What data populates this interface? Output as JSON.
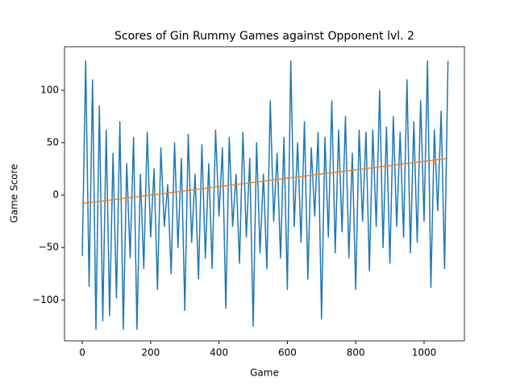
{
  "chart_data": {
    "type": "line",
    "title": "Scores of Gin Rummy Games against Opponent lvl. 2",
    "x_label": "Game",
    "y_label": "Game Score",
    "xlim": [
      -52,
      1118
    ],
    "ylim": [
      -139,
      141.5
    ],
    "xticks": [
      0,
      200,
      400,
      600,
      800,
      1000
    ],
    "yticks": [
      {
        "value": -100,
        "label": "−100"
      },
      {
        "value": -50,
        "label": "−50"
      },
      0,
      50,
      100
    ],
    "series": [
      {
        "color": "#1f77b4",
        "x": [
          0,
          10,
          20,
          30,
          40,
          50,
          60,
          70,
          80,
          90,
          100,
          110,
          120,
          130,
          140,
          150,
          160,
          170,
          180,
          190,
          200,
          210,
          220,
          230,
          240,
          250,
          260,
          270,
          280,
          290,
          300,
          310,
          320,
          330,
          340,
          350,
          360,
          370,
          380,
          390,
          400,
          410,
          420,
          430,
          440,
          450,
          460,
          470,
          480,
          490,
          500,
          510,
          520,
          530,
          540,
          550,
          560,
          570,
          580,
          590,
          600,
          610,
          620,
          630,
          640,
          650,
          660,
          670,
          680,
          690,
          700,
          710,
          720,
          730,
          740,
          750,
          760,
          770,
          780,
          790,
          800,
          810,
          820,
          830,
          840,
          850,
          860,
          870,
          880,
          890,
          900,
          910,
          920,
          930,
          940,
          950,
          960,
          970,
          980,
          990,
          1000,
          1010,
          1020,
          1030,
          1040,
          1050,
          1060,
          1070
        ],
        "values": [
          -58,
          128,
          -87,
          110,
          -128,
          85,
          -120,
          62,
          -115,
          40,
          -98,
          70,
          -128,
          30,
          -60,
          55,
          -128,
          20,
          -70,
          60,
          -40,
          25,
          -90,
          45,
          -30,
          10,
          -75,
          50,
          -50,
          35,
          -110,
          58,
          -45,
          20,
          -80,
          48,
          -60,
          30,
          -70,
          62,
          -20,
          45,
          -108,
          55,
          -30,
          20,
          -65,
          60,
          -40,
          35,
          -125,
          50,
          -55,
          20,
          -70,
          90,
          -25,
          40,
          -60,
          55,
          -90,
          128,
          -30,
          50,
          -45,
          70,
          -80,
          45,
          -20,
          60,
          -118,
          55,
          -40,
          90,
          -55,
          62,
          -35,
          75,
          -60,
          40,
          -90,
          62,
          -25,
          60,
          -72,
          62,
          -30,
          100,
          -50,
          65,
          -65,
          75,
          -30,
          60,
          -40,
          110,
          -55,
          70,
          -45,
          90,
          -25,
          128,
          -88,
          62,
          -15,
          80,
          -70,
          128
        ]
      },
      {
        "color": "#ff7f0e",
        "x": [
          0,
          1070
        ],
        "values": [
          -8,
          35
        ]
      }
    ]
  }
}
